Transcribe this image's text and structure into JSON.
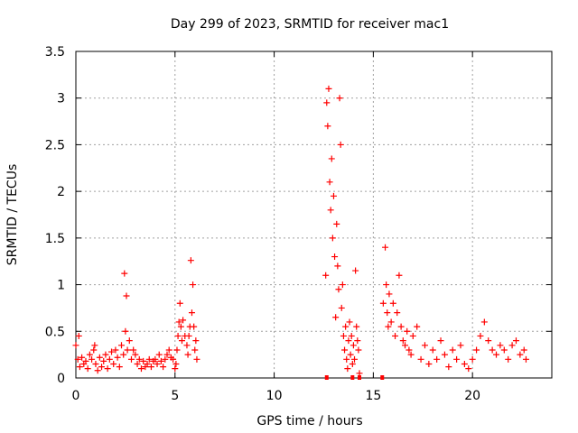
{
  "chart_data": {
    "type": "scatter",
    "title": "Day 299 of 2023, SRMTID for receiver mac1",
    "xlabel": "GPS time / hours",
    "ylabel": "SRMTID / TECUs",
    "xlim": [
      0,
      24
    ],
    "ylim": [
      0,
      3.5
    ],
    "xticks": [
      0,
      5,
      10,
      15,
      20
    ],
    "xtick_labels": [
      "0",
      "5",
      "10",
      "15",
      "20"
    ],
    "yticks": [
      0,
      0.5,
      1,
      1.5,
      2,
      2.5,
      3,
      3.5
    ],
    "ytick_labels": [
      "0",
      "0.5",
      "1",
      "1.5",
      "2",
      "2.5",
      "3",
      "3.5"
    ],
    "grid": true,
    "marker": "+",
    "color": "#ff0000",
    "series": [
      {
        "name": "mac1",
        "points": [
          [
            0.0,
            0.35
          ],
          [
            0.1,
            0.2
          ],
          [
            0.15,
            0.45
          ],
          [
            0.2,
            0.12
          ],
          [
            0.3,
            0.22
          ],
          [
            0.4,
            0.15
          ],
          [
            0.5,
            0.18
          ],
          [
            0.6,
            0.1
          ],
          [
            0.7,
            0.25
          ],
          [
            0.8,
            0.2
          ],
          [
            0.9,
            0.3
          ],
          [
            0.95,
            0.35
          ],
          [
            1.0,
            0.15
          ],
          [
            1.1,
            0.08
          ],
          [
            1.2,
            0.22
          ],
          [
            1.3,
            0.12
          ],
          [
            1.4,
            0.18
          ],
          [
            1.5,
            0.25
          ],
          [
            1.6,
            0.1
          ],
          [
            1.7,
            0.2
          ],
          [
            1.8,
            0.28
          ],
          [
            1.9,
            0.15
          ],
          [
            2.0,
            0.3
          ],
          [
            2.1,
            0.22
          ],
          [
            2.2,
            0.12
          ],
          [
            2.3,
            0.35
          ],
          [
            2.4,
            0.25
          ],
          [
            2.45,
            1.12
          ],
          [
            2.5,
            0.5
          ],
          [
            2.55,
            0.88
          ],
          [
            2.6,
            0.3
          ],
          [
            2.7,
            0.4
          ],
          [
            2.8,
            0.2
          ],
          [
            2.9,
            0.3
          ],
          [
            3.0,
            0.25
          ],
          [
            3.1,
            0.15
          ],
          [
            3.2,
            0.2
          ],
          [
            3.3,
            0.1
          ],
          [
            3.4,
            0.18
          ],
          [
            3.5,
            0.12
          ],
          [
            3.6,
            0.15
          ],
          [
            3.7,
            0.2
          ],
          [
            3.8,
            0.12
          ],
          [
            3.9,
            0.18
          ],
          [
            4.0,
            0.2
          ],
          [
            4.1,
            0.15
          ],
          [
            4.2,
            0.25
          ],
          [
            4.3,
            0.18
          ],
          [
            4.4,
            0.12
          ],
          [
            4.5,
            0.2
          ],
          [
            4.6,
            0.25
          ],
          [
            4.7,
            0.3
          ],
          [
            4.8,
            0.22
          ],
          [
            4.9,
            0.2
          ],
          [
            5.0,
            0.1
          ],
          [
            5.05,
            0.15
          ],
          [
            5.1,
            0.3
          ],
          [
            5.15,
            0.45
          ],
          [
            5.2,
            0.6
          ],
          [
            5.25,
            0.8
          ],
          [
            5.3,
            0.55
          ],
          [
            5.35,
            0.4
          ],
          [
            5.4,
            0.62
          ],
          [
            5.5,
            0.45
          ],
          [
            5.6,
            0.35
          ],
          [
            5.65,
            0.25
          ],
          [
            5.7,
            0.45
          ],
          [
            5.75,
            0.55
          ],
          [
            5.8,
            1.26
          ],
          [
            5.85,
            0.7
          ],
          [
            5.9,
            1.0
          ],
          [
            5.95,
            0.55
          ],
          [
            6.0,
            0.3
          ],
          [
            6.05,
            0.4
          ],
          [
            6.1,
            0.2
          ],
          [
            12.6,
            1.1
          ],
          [
            12.65,
            2.95
          ],
          [
            12.7,
            2.7
          ],
          [
            12.75,
            3.1
          ],
          [
            12.8,
            2.1
          ],
          [
            12.85,
            1.8
          ],
          [
            12.9,
            2.35
          ],
          [
            12.95,
            1.5
          ],
          [
            13.0,
            1.95
          ],
          [
            13.05,
            1.3
          ],
          [
            13.1,
            0.65
          ],
          [
            13.15,
            1.65
          ],
          [
            13.2,
            1.2
          ],
          [
            13.25,
            0.95
          ],
          [
            13.3,
            3.0
          ],
          [
            13.35,
            2.5
          ],
          [
            13.4,
            0.75
          ],
          [
            13.45,
            1.0
          ],
          [
            13.5,
            0.45
          ],
          [
            13.55,
            0.3
          ],
          [
            13.6,
            0.55
          ],
          [
            13.65,
            0.2
          ],
          [
            13.7,
            0.1
          ],
          [
            13.75,
            0.4
          ],
          [
            13.8,
            0.6
          ],
          [
            13.85,
            0.25
          ],
          [
            13.9,
            0.45
          ],
          [
            13.95,
            0.15
          ],
          [
            14.0,
            0.35
          ],
          [
            14.05,
            0.2
          ],
          [
            14.1,
            1.15
          ],
          [
            14.15,
            0.55
          ],
          [
            14.2,
            0.4
          ],
          [
            14.25,
            0.3
          ],
          [
            14.3,
            0.05
          ],
          [
            15.5,
            0.8
          ],
          [
            15.6,
            1.4
          ],
          [
            15.65,
            1.0
          ],
          [
            15.7,
            0.7
          ],
          [
            15.75,
            0.55
          ],
          [
            15.8,
            0.9
          ],
          [
            15.9,
            0.6
          ],
          [
            16.0,
            0.8
          ],
          [
            16.1,
            0.45
          ],
          [
            16.2,
            0.7
          ],
          [
            16.3,
            1.1
          ],
          [
            16.4,
            0.55
          ],
          [
            16.5,
            0.4
          ],
          [
            16.6,
            0.35
          ],
          [
            16.7,
            0.5
          ],
          [
            16.8,
            0.3
          ],
          [
            16.9,
            0.25
          ],
          [
            17.0,
            0.45
          ],
          [
            17.2,
            0.55
          ],
          [
            17.4,
            0.2
          ],
          [
            17.6,
            0.35
          ],
          [
            17.8,
            0.15
          ],
          [
            18.0,
            0.3
          ],
          [
            18.2,
            0.2
          ],
          [
            18.4,
            0.4
          ],
          [
            18.6,
            0.25
          ],
          [
            18.8,
            0.12
          ],
          [
            19.0,
            0.3
          ],
          [
            19.2,
            0.2
          ],
          [
            19.4,
            0.35
          ],
          [
            19.6,
            0.15
          ],
          [
            19.8,
            0.1
          ],
          [
            20.0,
            0.2
          ],
          [
            20.2,
            0.3
          ],
          [
            20.4,
            0.45
          ],
          [
            20.6,
            0.6
          ],
          [
            20.8,
            0.4
          ],
          [
            21.0,
            0.3
          ],
          [
            21.2,
            0.25
          ],
          [
            21.4,
            0.35
          ],
          [
            21.6,
            0.3
          ],
          [
            21.8,
            0.2
          ],
          [
            22.0,
            0.35
          ],
          [
            22.2,
            0.4
          ],
          [
            22.4,
            0.25
          ],
          [
            22.6,
            0.3
          ],
          [
            22.7,
            0.2
          ]
        ],
        "zero_points": [
          12.65,
          13.95,
          14.3,
          15.45
        ]
      }
    ]
  }
}
